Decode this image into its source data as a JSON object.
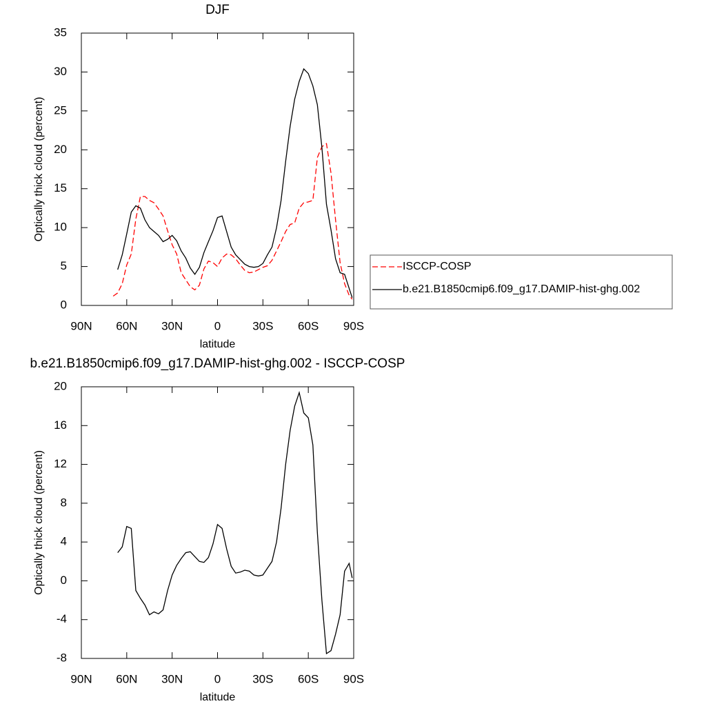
{
  "chart_data": [
    {
      "type": "line",
      "title": "DJF",
      "xlabel": "latitude",
      "ylabel": "Optically thick cloud (percent)",
      "x": [
        69,
        66,
        63,
        60,
        57,
        54,
        51,
        48,
        45,
        42,
        39,
        36,
        33,
        30,
        27,
        24,
        21,
        18,
        15,
        12,
        9,
        6,
        3,
        0,
        -3,
        -6,
        -9,
        -12,
        -15,
        -18,
        -21,
        -24,
        -27,
        -30,
        -33,
        -36,
        -39,
        -42,
        -45,
        -48,
        -51,
        -54,
        -57,
        -60,
        -63,
        -66,
        -69,
        -72,
        -75,
        -78,
        -81,
        -84,
        -87,
        -89
      ],
      "series": [
        {
          "name": "ISCCP-COSP",
          "color": "#ff0000",
          "dash": "dashed",
          "values": [
            1.2,
            1.6,
            2.8,
            5.2,
            6.6,
            11.1,
            14.0,
            14.0,
            13.5,
            13.2,
            12.4,
            11.5,
            9.6,
            7.8,
            6.6,
            4.2,
            3.3,
            2.4,
            2.0,
            2.6,
            4.7,
            5.7,
            5.5,
            5.0,
            6.1,
            6.6,
            6.5,
            6.0,
            5.2,
            4.5,
            4.2,
            4.3,
            4.6,
            4.9,
            5.1,
            5.8,
            7.0,
            8.2,
            9.5,
            10.4,
            10.6,
            12.5,
            13.2,
            13.3,
            13.5,
            19.0,
            20.4,
            20.8,
            17.0,
            11.0,
            5.5,
            2.8,
            1.3,
            0.8
          ]
        },
        {
          "name": "b.e21.B1850cmip6.f09_g17.DAMIP-hist-ghg.002",
          "color": "#000000",
          "dash": "solid",
          "values": [
            null,
            4.6,
            6.5,
            9.2,
            12.0,
            12.8,
            12.5,
            11.0,
            10.0,
            9.5,
            9.0,
            8.2,
            8.5,
            9.0,
            8.3,
            7.0,
            6.1,
            4.8,
            4.0,
            4.9,
            6.8,
            8.2,
            9.6,
            11.3,
            11.5,
            9.5,
            7.5,
            6.5,
            5.9,
            5.3,
            5.0,
            4.9,
            5.0,
            5.4,
            6.5,
            7.5,
            10.0,
            13.5,
            18.5,
            23.0,
            26.5,
            28.8,
            30.4,
            29.8,
            28.2,
            25.8,
            20.3,
            13.0,
            9.7,
            6.0,
            4.2,
            4.0,
            2.2,
            1.0
          ]
        }
      ],
      "xlim": [
        90,
        -90
      ],
      "xticks": [
        {
          "value": 90,
          "label": "90N"
        },
        {
          "value": 60,
          "label": "60N"
        },
        {
          "value": 30,
          "label": "30N"
        },
        0,
        {
          "value": -30,
          "label": "30S"
        },
        {
          "value": -60,
          "label": "60S"
        },
        {
          "value": -90,
          "label": "90S"
        }
      ],
      "ylim": [
        0,
        35
      ],
      "yticks": [
        0,
        5,
        10,
        15,
        20,
        25,
        30,
        35
      ],
      "legend": "right"
    },
    {
      "type": "line",
      "title": "b.e21.B1850cmip6.f09_g17.DAMIP-hist-ghg.002 - ISCCP-COSP",
      "xlabel": "latitude",
      "ylabel": "Optically thick cloud (percent)",
      "x": [
        69,
        66,
        63,
        60,
        57,
        54,
        51,
        48,
        45,
        42,
        39,
        36,
        33,
        30,
        27,
        24,
        21,
        18,
        15,
        12,
        9,
        6,
        3,
        0,
        -3,
        -6,
        -9,
        -12,
        -15,
        -18,
        -21,
        -24,
        -27,
        -30,
        -33,
        -36,
        -39,
        -42,
        -45,
        -48,
        -51,
        -54,
        -57,
        -60,
        -63,
        -66,
        -69,
        -72,
        -75,
        -78,
        -81,
        -84,
        -87,
        -89
      ],
      "series": [
        {
          "color": "#000000",
          "dash": "solid",
          "values": [
            null,
            2.9,
            3.5,
            5.6,
            5.4,
            -1.0,
            -1.8,
            -2.5,
            -3.5,
            -3.2,
            -3.4,
            -3.0,
            -1.0,
            0.6,
            1.6,
            2.3,
            2.9,
            3.0,
            2.5,
            2.0,
            1.9,
            2.4,
            3.8,
            5.8,
            5.4,
            3.3,
            1.5,
            0.8,
            0.9,
            1.1,
            1.0,
            0.6,
            0.5,
            0.6,
            1.3,
            2.0,
            4.0,
            7.5,
            12.0,
            15.5,
            18.0,
            19.4,
            17.3,
            16.8,
            14.0,
            5.0,
            -2.0,
            -7.5,
            -7.2,
            -5.5,
            -3.5,
            1.0,
            1.8,
            0.3
          ]
        }
      ],
      "xlim": [
        90,
        -90
      ],
      "xticks": [
        {
          "value": 90,
          "label": "90N"
        },
        {
          "value": 60,
          "label": "60N"
        },
        {
          "value": 30,
          "label": "30N"
        },
        0,
        {
          "value": -30,
          "label": "30S"
        },
        {
          "value": -60,
          "label": "60S"
        },
        {
          "value": -90,
          "label": "90S"
        }
      ],
      "ylim": [
        -8,
        20
      ],
      "yticks": [
        -8,
        -4,
        0,
        4,
        8,
        12,
        16,
        20
      ]
    }
  ]
}
